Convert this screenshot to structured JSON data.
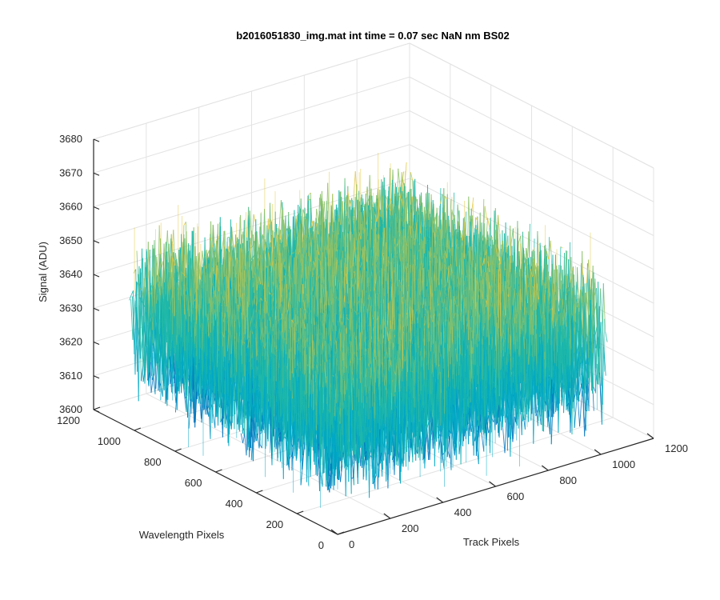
{
  "chart_data": {
    "type": "surface",
    "title": "b2016051830_img.mat int time = 0.07 sec  NaN nm BS02",
    "xlabel": "Track Pixels",
    "ylabel": "Wavelength Pixels",
    "zlabel": "Signal (ADU)",
    "xlim": [
      0,
      1200
    ],
    "ylim": [
      0,
      1200
    ],
    "zlim": [
      3600,
      3680
    ],
    "x_ticks": [
      "0",
      "200",
      "400",
      "600",
      "800",
      "1000",
      "1200"
    ],
    "y_ticks": [
      "0",
      "200",
      "400",
      "600",
      "800",
      "1000",
      "1200"
    ],
    "z_ticks": [
      "3600",
      "3610",
      "3620",
      "3630",
      "3640",
      "3650",
      "3660",
      "3670",
      "3680"
    ],
    "grid": true,
    "colormap": [
      "#0072bd",
      "#00a8c6",
      "#20b8a8",
      "#8cc26a",
      "#e3c83f"
    ],
    "surface": {
      "x_extent": [
        0,
        1024
      ],
      "y_extent": [
        0,
        1024
      ],
      "mean_signal": 3632,
      "noise_min": 3608,
      "noise_max": 3662
    }
  }
}
